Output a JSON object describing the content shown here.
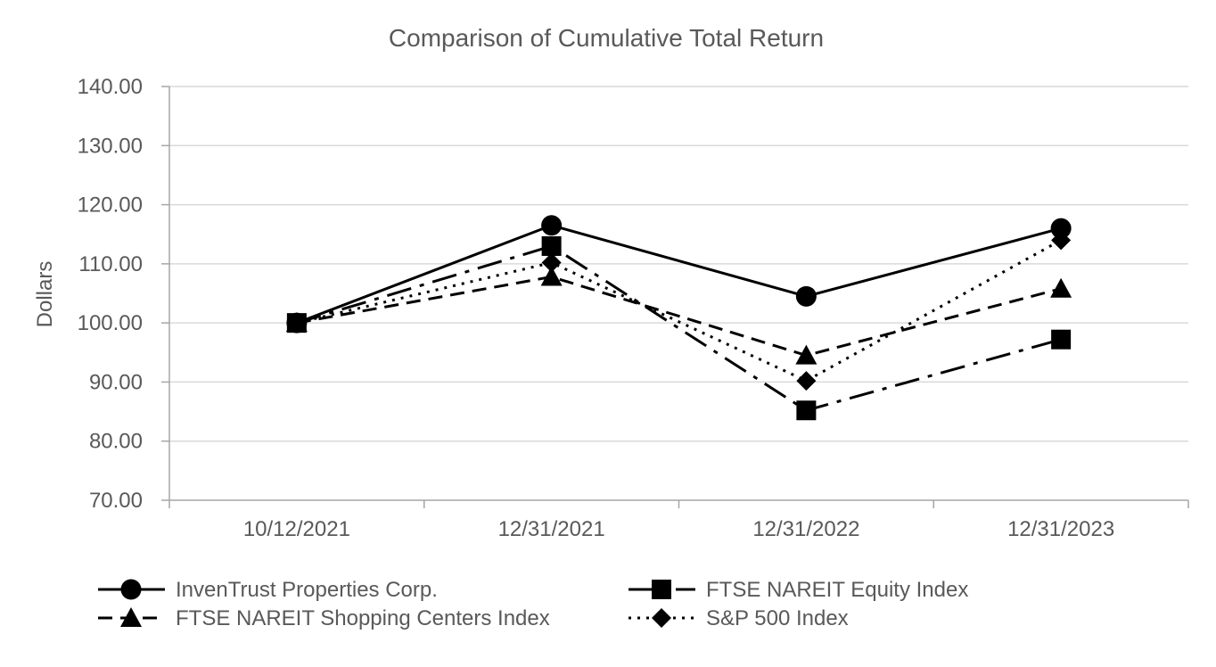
{
  "chart_data": {
    "type": "line",
    "title": "Comparison of Cumulative Total Return",
    "xlabel": "",
    "ylabel": "Dollars",
    "categories": [
      "10/12/2021",
      "12/31/2021",
      "12/31/2022",
      "12/31/2023"
    ],
    "ylim": [
      70,
      140
    ],
    "yticks": [
      "70.00",
      "80.00",
      "90.00",
      "100.00",
      "110.00",
      "120.00",
      "130.00",
      "140.00"
    ],
    "grid": true,
    "legend_position": "bottom",
    "series": [
      {
        "name": "InvenTrust Properties Corp.",
        "values": [
          100.0,
          116.5,
          104.5,
          116.0
        ],
        "marker": "circle",
        "line": "solid"
      },
      {
        "name": "FTSE NAREIT Equity Index",
        "values": [
          100.0,
          113.0,
          85.2,
          97.2
        ],
        "marker": "square",
        "line": "dashdot"
      },
      {
        "name": "FTSE NAREIT Shopping Centers Index",
        "values": [
          100.0,
          107.8,
          94.5,
          105.8
        ],
        "marker": "triangle",
        "line": "dashed"
      },
      {
        "name": "S&P 500 Index",
        "values": [
          100.0,
          110.2,
          90.2,
          114.0
        ],
        "marker": "diamond",
        "line": "dotted"
      }
    ],
    "colors": {
      "text": "#595959",
      "grid": "#d9d9d9",
      "axis": "#a6a6a6",
      "series": "#000000"
    }
  }
}
